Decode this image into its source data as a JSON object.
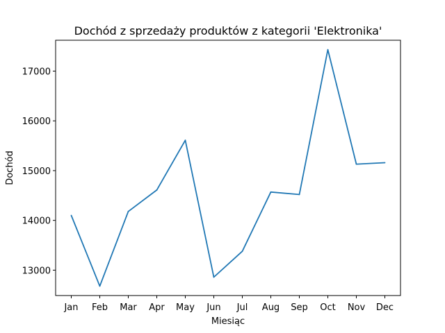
{
  "chart_data": {
    "type": "line",
    "title": "Dochód z sprzedaży produktów z kategorii 'Elektronika'",
    "xlabel": "Miesiąc",
    "ylabel": "Dochód",
    "categories": [
      "Jan",
      "Feb",
      "Mar",
      "Apr",
      "May",
      "Jun",
      "Jul",
      "Aug",
      "Sep",
      "Oct",
      "Nov",
      "Dec"
    ],
    "values": [
      14100,
      12680,
      14180,
      14610,
      15610,
      12860,
      13380,
      14570,
      14520,
      17430,
      15130,
      15160
    ],
    "yticks": [
      13000,
      14000,
      15000,
      16000,
      17000
    ],
    "ylim": [
      12490,
      17620
    ],
    "grid": false,
    "line_color": "#1f77b4"
  }
}
